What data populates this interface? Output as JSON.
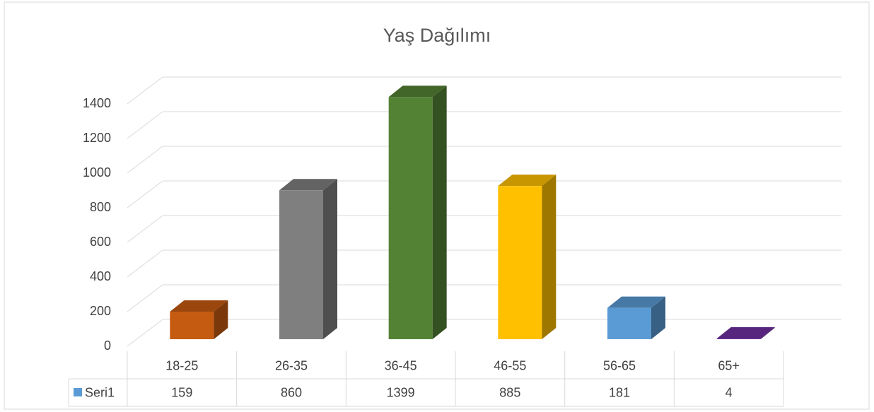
{
  "chart_data": {
    "type": "bar3d",
    "title": "Yaş Dağılımı",
    "categories": [
      "18-25",
      "26-35",
      "36-45",
      "46-55",
      "56-65",
      "65+"
    ],
    "series": [
      {
        "name": "Seri1",
        "color": "#5b9bd5",
        "values": [
          159,
          860,
          1399,
          885,
          181,
          4
        ]
      }
    ],
    "colors": [
      "#c55a11",
      "#7f7f7f",
      "#548235",
      "#ffc000",
      "#5b9bd5",
      "#7030a0"
    ],
    "ylim": [
      0,
      1400
    ],
    "yticks": [
      0,
      200,
      400,
      600,
      800,
      1000,
      1200,
      1400
    ],
    "grid": true
  }
}
